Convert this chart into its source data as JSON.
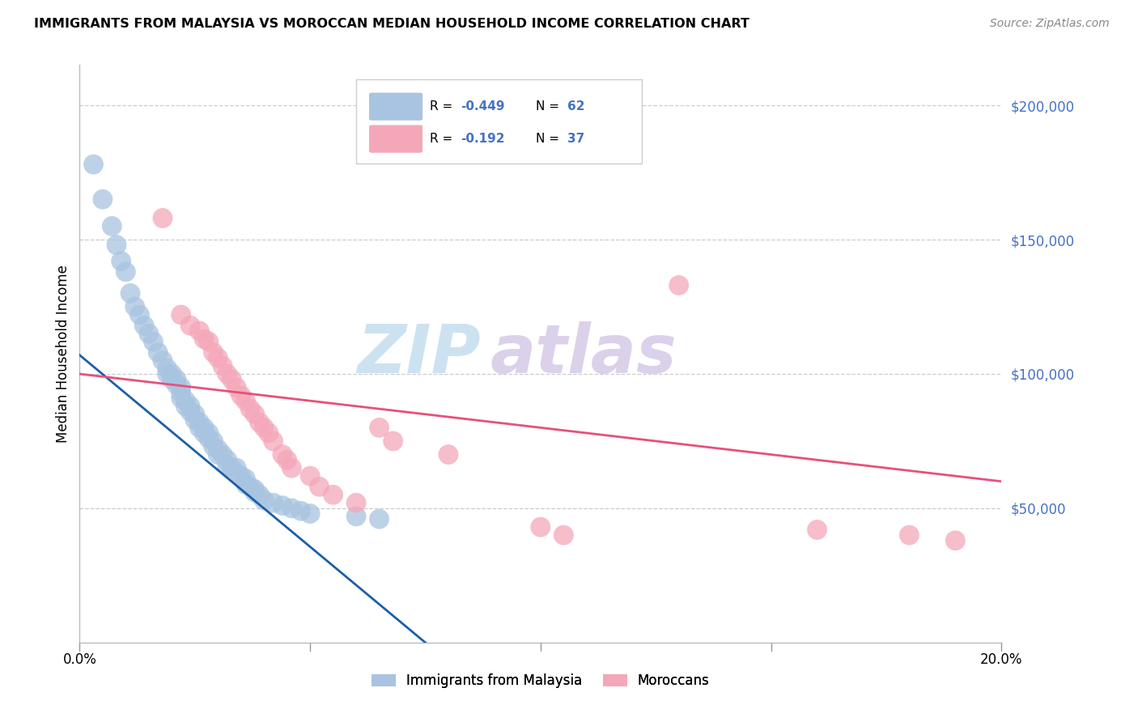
{
  "title": "IMMIGRANTS FROM MALAYSIA VS MOROCCAN MEDIAN HOUSEHOLD INCOME CORRELATION CHART",
  "source": "Source: ZipAtlas.com",
  "ylabel": "Median Household Income",
  "xlim": [
    0,
    0.2
  ],
  "ylim": [
    0,
    215000
  ],
  "yticks": [
    50000,
    100000,
    150000,
    200000
  ],
  "ytick_labels": [
    "$50,000",
    "$100,000",
    "$150,000",
    "$200,000"
  ],
  "xticks": [
    0.0,
    0.05,
    0.1,
    0.15,
    0.2
  ],
  "xtick_labels": [
    "0.0%",
    "",
    "",
    "",
    "20.0%"
  ],
  "legend_labels": [
    "Immigrants from Malaysia",
    "Moroccans"
  ],
  "watermark_zip": "ZIP",
  "watermark_atlas": "atlas",
  "blue_color": "#a8c4e0",
  "pink_color": "#f4a7b9",
  "blue_line_color": "#1a5fa8",
  "pink_line_color": "#e8507a",
  "blue_scatter_x": [
    0.003,
    0.005,
    0.007,
    0.008,
    0.009,
    0.01,
    0.011,
    0.012,
    0.013,
    0.014,
    0.015,
    0.016,
    0.017,
    0.018,
    0.019,
    0.019,
    0.02,
    0.02,
    0.021,
    0.021,
    0.022,
    0.022,
    0.022,
    0.023,
    0.023,
    0.024,
    0.024,
    0.025,
    0.025,
    0.026,
    0.026,
    0.027,
    0.027,
    0.028,
    0.028,
    0.029,
    0.029,
    0.03,
    0.03,
    0.031,
    0.032,
    0.032,
    0.033,
    0.034,
    0.034,
    0.035,
    0.036,
    0.036,
    0.037,
    0.038,
    0.038,
    0.039,
    0.04,
    0.042,
    0.044,
    0.046,
    0.048,
    0.05,
    0.06,
    0.065
  ],
  "blue_scatter_y": [
    178000,
    165000,
    155000,
    148000,
    142000,
    138000,
    130000,
    125000,
    122000,
    118000,
    115000,
    112000,
    108000,
    105000,
    102000,
    100000,
    100000,
    98000,
    98000,
    96000,
    95000,
    93000,
    91000,
    90000,
    88000,
    88000,
    86000,
    85000,
    83000,
    82000,
    80000,
    80000,
    78000,
    78000,
    76000,
    75000,
    73000,
    72000,
    70000,
    70000,
    68000,
    66000,
    65000,
    65000,
    63000,
    62000,
    61000,
    59000,
    58000,
    57000,
    56000,
    55000,
    53000,
    52000,
    51000,
    50000,
    49000,
    48000,
    47000,
    46000
  ],
  "pink_scatter_x": [
    0.018,
    0.022,
    0.024,
    0.026,
    0.027,
    0.028,
    0.029,
    0.03,
    0.031,
    0.032,
    0.033,
    0.034,
    0.035,
    0.036,
    0.037,
    0.038,
    0.039,
    0.04,
    0.041,
    0.042,
    0.044,
    0.045,
    0.046,
    0.05,
    0.052,
    0.055,
    0.06,
    0.065,
    0.068,
    0.08,
    0.1,
    0.105,
    0.13,
    0.16,
    0.18,
    0.19
  ],
  "pink_scatter_y": [
    158000,
    122000,
    118000,
    116000,
    113000,
    112000,
    108000,
    106000,
    103000,
    100000,
    98000,
    95000,
    92000,
    90000,
    87000,
    85000,
    82000,
    80000,
    78000,
    75000,
    70000,
    68000,
    65000,
    62000,
    58000,
    55000,
    52000,
    80000,
    75000,
    70000,
    43000,
    40000,
    133000,
    42000,
    40000,
    38000
  ],
  "blue_line_x0": 0.0,
  "blue_line_y0": 107000,
  "blue_line_x1": 0.075,
  "blue_line_y1": 0,
  "pink_line_x0": 0.0,
  "pink_line_y0": 100000,
  "pink_line_x1": 0.2,
  "pink_line_y1": 60000
}
